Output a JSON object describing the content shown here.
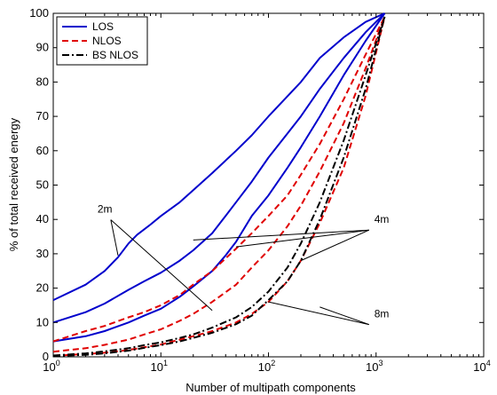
{
  "chart_data": {
    "type": "line",
    "title": "",
    "xlabel": "Number of multipath components",
    "ylabel": "% of total received energy",
    "xscale": "log",
    "xlim": [
      1,
      10000
    ],
    "ylim": [
      0,
      100
    ],
    "grid": false,
    "legend_position": "top-left",
    "x_tick_labels": [
      {
        "base": "10",
        "exp": "0"
      },
      {
        "base": "10",
        "exp": "1"
      },
      {
        "base": "10",
        "exp": "2"
      },
      {
        "base": "10",
        "exp": "3"
      },
      {
        "base": "10",
        "exp": "4"
      }
    ],
    "y_ticks": [
      0,
      10,
      20,
      30,
      40,
      50,
      60,
      70,
      80,
      90,
      100
    ],
    "legend": [
      {
        "label": "LOS",
        "color": "#0000cc",
        "style": "solid"
      },
      {
        "label": "NLOS",
        "color": "#e00000",
        "style": "dashed"
      },
      {
        "label": "BS NLOS",
        "color": "#000000",
        "style": "dashdot"
      }
    ],
    "series": [
      {
        "group": "LOS",
        "color": "#0000cc",
        "style": "solid",
        "points": [
          [
            1,
            16.5
          ],
          [
            2,
            21
          ],
          [
            3,
            25
          ],
          [
            4,
            29
          ],
          [
            5,
            33
          ],
          [
            6,
            35.5
          ],
          [
            8,
            38.5
          ],
          [
            10,
            41
          ],
          [
            15,
            45
          ],
          [
            20,
            48.5
          ],
          [
            30,
            53.5
          ],
          [
            50,
            60
          ],
          [
            70,
            64.5
          ],
          [
            100,
            70
          ],
          [
            200,
            80
          ],
          [
            300,
            87
          ],
          [
            500,
            93
          ],
          [
            800,
            97.5
          ],
          [
            1200,
            100
          ]
        ]
      },
      {
        "group": "LOS",
        "color": "#0000cc",
        "style": "solid",
        "points": [
          [
            1,
            10
          ],
          [
            2,
            13
          ],
          [
            3,
            15.5
          ],
          [
            5,
            19.5
          ],
          [
            7,
            22
          ],
          [
            10,
            24.5
          ],
          [
            15,
            28
          ],
          [
            20,
            31
          ],
          [
            30,
            36
          ],
          [
            40,
            41
          ],
          [
            50,
            45
          ],
          [
            70,
            51
          ],
          [
            100,
            58
          ],
          [
            150,
            65
          ],
          [
            200,
            70
          ],
          [
            300,
            78
          ],
          [
            500,
            87
          ],
          [
            800,
            94.5
          ],
          [
            1200,
            100
          ]
        ]
      },
      {
        "group": "LOS",
        "color": "#0000cc",
        "style": "solid",
        "points": [
          [
            1,
            4.5
          ],
          [
            2,
            6
          ],
          [
            3,
            7.5
          ],
          [
            5,
            10
          ],
          [
            7,
            12
          ],
          [
            10,
            14
          ],
          [
            15,
            17.5
          ],
          [
            20,
            20.5
          ],
          [
            30,
            25
          ],
          [
            40,
            29.5
          ],
          [
            50,
            33.5
          ],
          [
            70,
            41
          ],
          [
            100,
            47
          ],
          [
            150,
            55
          ],
          [
            200,
            61
          ],
          [
            300,
            70
          ],
          [
            500,
            82
          ],
          [
            800,
            92
          ],
          [
            1200,
            100
          ]
        ]
      },
      {
        "group": "NLOS",
        "color": "#e00000",
        "style": "dashed",
        "points": [
          [
            1,
            4.5
          ],
          [
            2,
            7.5
          ],
          [
            3,
            9
          ],
          [
            5,
            11.5
          ],
          [
            7,
            13
          ],
          [
            10,
            15
          ],
          [
            15,
            18
          ],
          [
            20,
            21
          ],
          [
            30,
            25
          ],
          [
            50,
            31.5
          ],
          [
            70,
            36
          ],
          [
            100,
            41
          ],
          [
            150,
            47
          ],
          [
            200,
            53
          ],
          [
            300,
            62
          ],
          [
            500,
            75
          ],
          [
            800,
            88
          ],
          [
            1200,
            99
          ]
        ]
      },
      {
        "group": "NLOS",
        "color": "#e00000",
        "style": "dashed",
        "points": [
          [
            1,
            1.5
          ],
          [
            2,
            2.5
          ],
          [
            3,
            3.5
          ],
          [
            5,
            5
          ],
          [
            7,
            6.5
          ],
          [
            10,
            8
          ],
          [
            15,
            10.5
          ],
          [
            20,
            12.5
          ],
          [
            30,
            16
          ],
          [
            50,
            21
          ],
          [
            70,
            26
          ],
          [
            100,
            31
          ],
          [
            150,
            38
          ],
          [
            200,
            44
          ],
          [
            300,
            54
          ],
          [
            500,
            68
          ],
          [
            800,
            84
          ],
          [
            1200,
            99
          ]
        ]
      },
      {
        "group": "NLOS",
        "color": "#e00000",
        "style": "dashed",
        "points": [
          [
            1,
            0.3
          ],
          [
            2,
            0.8
          ],
          [
            3,
            1.2
          ],
          [
            5,
            2
          ],
          [
            7,
            2.8
          ],
          [
            10,
            3.6
          ],
          [
            15,
            5
          ],
          [
            20,
            6
          ],
          [
            30,
            7.5
          ],
          [
            50,
            10
          ],
          [
            70,
            12.5
          ],
          [
            100,
            16
          ],
          [
            150,
            22
          ],
          [
            200,
            28
          ],
          [
            300,
            39
          ],
          [
            500,
            55
          ],
          [
            800,
            76
          ],
          [
            1200,
            99
          ]
        ]
      },
      {
        "group": "BS NLOS",
        "color": "#000000",
        "style": "dashdot",
        "points": [
          [
            1,
            0.2
          ],
          [
            2,
            0.6
          ],
          [
            3,
            1
          ],
          [
            5,
            1.8
          ],
          [
            7,
            2.6
          ],
          [
            10,
            3.4
          ],
          [
            15,
            4.5
          ],
          [
            20,
            5.5
          ],
          [
            30,
            7
          ],
          [
            50,
            9.5
          ],
          [
            70,
            12
          ],
          [
            100,
            16.5
          ],
          [
            150,
            22
          ],
          [
            200,
            28
          ],
          [
            300,
            40
          ],
          [
            500,
            58
          ],
          [
            800,
            78
          ],
          [
            1200,
            99
          ]
        ]
      },
      {
        "group": "BS NLOS",
        "color": "#000000",
        "style": "dashdot",
        "points": [
          [
            1,
            0.4
          ],
          [
            2,
            1
          ],
          [
            3,
            1.6
          ],
          [
            5,
            2.5
          ],
          [
            7,
            3.4
          ],
          [
            10,
            4.2
          ],
          [
            15,
            5.5
          ],
          [
            20,
            6.5
          ],
          [
            30,
            8.5
          ],
          [
            50,
            11.5
          ],
          [
            70,
            14.5
          ],
          [
            100,
            19
          ],
          [
            150,
            26
          ],
          [
            200,
            33
          ],
          [
            300,
            45
          ],
          [
            500,
            63
          ],
          [
            800,
            82
          ],
          [
            1200,
            99
          ]
        ]
      }
    ],
    "annotations": [
      {
        "text": "2m",
        "x": 3,
        "y": 43,
        "targets": [
          [
            4,
            29.5
          ],
          [
            30,
            13.5
          ]
        ]
      },
      {
        "text": "4m",
        "x": 1000,
        "y": 40,
        "targets": [
          [
            20,
            34
          ],
          [
            50,
            32
          ],
          [
            200,
            28
          ]
        ]
      },
      {
        "text": "8m",
        "x": 1000,
        "y": 12.5,
        "targets": [
          [
            100,
            16
          ],
          [
            300,
            14.5
          ]
        ]
      }
    ]
  }
}
